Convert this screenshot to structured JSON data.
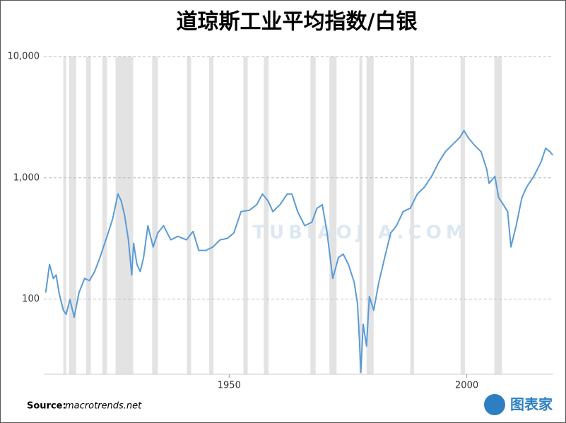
{
  "chart_data": {
    "type": "line",
    "title": "道琼斯工业平均指数/白银",
    "log_scale": true,
    "grid": true,
    "color": "#5b9bd5",
    "x": [
      1911.4,
      1912.2,
      1913.0,
      1913.6,
      1914.2,
      1915.1,
      1915.7,
      1916.5,
      1917.4,
      1918.4,
      1919.6,
      1920.6,
      1921.7,
      1922.8,
      1924.3,
      1925.5,
      1926.6,
      1927.3,
      1928.0,
      1928.8,
      1929.5,
      1929.9,
      1930.6,
      1931.3,
      1932.0,
      1932.9,
      1934.0,
      1935.0,
      1936.2,
      1937.7,
      1939.2,
      1941.0,
      1942.4,
      1943.6,
      1945.1,
      1946.6,
      1948.1,
      1949.6,
      1951.0,
      1952.5,
      1954.3,
      1955.8,
      1957.0,
      1958.2,
      1959.2,
      1960.7,
      1962.2,
      1963.2,
      1964.4,
      1965.9,
      1967.4,
      1968.5,
      1969.6,
      1970.6,
      1971.8,
      1973.0,
      1974.0,
      1975.1,
      1976.3,
      1977.0,
      1977.4,
      1977.7,
      1978.2,
      1978.9,
      1979.5,
      1980.4,
      1981.5,
      1982.9,
      1984.0,
      1985.2,
      1986.6,
      1988.1,
      1989.6,
      1991.1,
      1992.6,
      1994.1,
      1995.5,
      1997.0,
      1998.5,
      1999.4,
      2000.3,
      2001.5,
      2003.0,
      2004.2,
      2004.7,
      2005.9,
      2006.7,
      2007.7,
      2008.6,
      2009.3,
      2010.4,
      2011.6,
      2012.6,
      2014.1,
      2015.6,
      2016.6,
      2017.5,
      2018.1
    ],
    "values": [
      113,
      193,
      148,
      158,
      113,
      81,
      75,
      99,
      71,
      113,
      148,
      142,
      169,
      220,
      329,
      460,
      735,
      643,
      492,
      308,
      158,
      288,
      193,
      169,
      220,
      403,
      269,
      352,
      403,
      308,
      329,
      308,
      361,
      252,
      252,
      269,
      308,
      316,
      352,
      526,
      541,
      601,
      735,
      643,
      526,
      601,
      735,
      735,
      526,
      403,
      430,
      562,
      601,
      352,
      148,
      220,
      235,
      193,
      138,
      92,
      47,
      25,
      62,
      41,
      105,
      81,
      138,
      235,
      352,
      403,
      526,
      562,
      735,
      839,
      1028,
      1343,
      1641,
      1876,
      2144,
      2452,
      2144,
      1876,
      1641,
      1175,
      898,
      1028,
      687,
      601,
      526,
      269,
      403,
      687,
      839,
      1028,
      1343,
      1754,
      1641,
      1535
    ],
    "recessions": [
      [
        1915.1,
        1915.7
      ],
      [
        1916.3,
        1917.8
      ],
      [
        1919.9,
        1920.9
      ],
      [
        1923.3,
        1924.3
      ],
      [
        1926.1,
        1929.8
      ],
      [
        1933.8,
        1935.0
      ],
      [
        1941.1,
        1942.0
      ],
      [
        1945.8,
        1946.7
      ],
      [
        1953.0,
        1953.9
      ],
      [
        1957.3,
        1958.3
      ],
      [
        1967.1,
        1968.2
      ],
      [
        1971.1,
        1972.6
      ],
      [
        1977.4,
        1978.0
      ],
      [
        1978.9,
        1980.4
      ],
      [
        1988.1,
        1988.9
      ],
      [
        1998.7,
        1999.6
      ],
      [
        2005.8,
        2007.4
      ]
    ],
    "recession_color": "#e3e3e3",
    "xlim": [
      1911,
      2018.2
    ],
    "xticks": [
      1950,
      2000
    ],
    "ylim": [
      24,
      10000
    ],
    "yticks": [
      {
        "value": 100,
        "label": "100"
      },
      {
        "value": 1000,
        "label": "1,000"
      },
      {
        "value": 10000,
        "label": "10,000"
      }
    ],
    "source_label": "Source:",
    "source": "macrotrends.net",
    "logo": "图表家",
    "watermark": "TUBIAOJIA.COM"
  }
}
